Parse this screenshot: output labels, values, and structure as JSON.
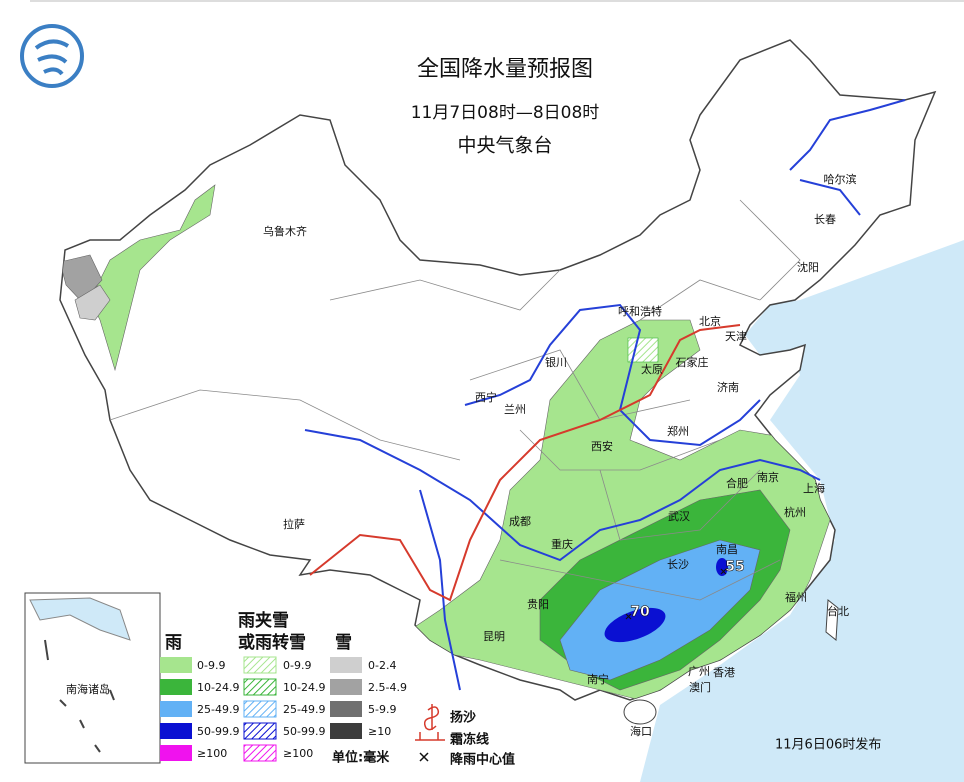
{
  "header": {
    "title": "全国降水量预报图",
    "subtitle": "11月7日08时—8日08时",
    "issuer": "中央气象台"
  },
  "cities": [
    "乌鲁木齐",
    "哈尔滨",
    "长春",
    "沈阳",
    "呼和浩特",
    "北京",
    "天津",
    "石家庄",
    "太原",
    "银川",
    "济南",
    "西宁",
    "兰州",
    "郑州",
    "西安",
    "合肥",
    "南京",
    "上海",
    "拉萨",
    "成都",
    "武汉",
    "杭州",
    "重庆",
    "长沙",
    "南昌",
    "贵阳",
    "福州",
    "台北",
    "昆明",
    "南宁",
    "广州",
    "香港",
    "澳门",
    "海口"
  ],
  "rain_centers": [
    70,
    55
  ],
  "inset": {
    "label": "南海诸岛"
  },
  "legend": {
    "rain": {
      "title": "雨",
      "labels": [
        "0-9.9",
        "10-24.9",
        "25-49.9",
        "50-99.9",
        "≥100"
      ],
      "colors": [
        "#a6e58e",
        "#3bb53b",
        "#62b1f5",
        "#0a10d2",
        "#f012ee"
      ]
    },
    "sleet": {
      "title": [
        "雨夹雪",
        "或雨转雪"
      ],
      "labels": [
        "0-9.9",
        "10-24.9",
        "25-49.9",
        "50-99.9",
        "≥100"
      ],
      "colors": [
        "#a6e58e",
        "#3bb53b",
        "#62b1f5",
        "#0a10d2",
        "#f012ee"
      ]
    },
    "snow": {
      "title": "雪",
      "labels": [
        "0-2.4",
        "2.5-4.9",
        "5-9.9",
        "≥10"
      ],
      "colors": [
        "#cfcfcf",
        "#a2a2a2",
        "#707070",
        "#3c3c3c"
      ]
    },
    "symbols": {
      "sand": "扬沙",
      "frost": "霜冻线",
      "center": "降雨中心值"
    },
    "unit": "单位:毫米"
  },
  "footer": "11月6日06时发布"
}
